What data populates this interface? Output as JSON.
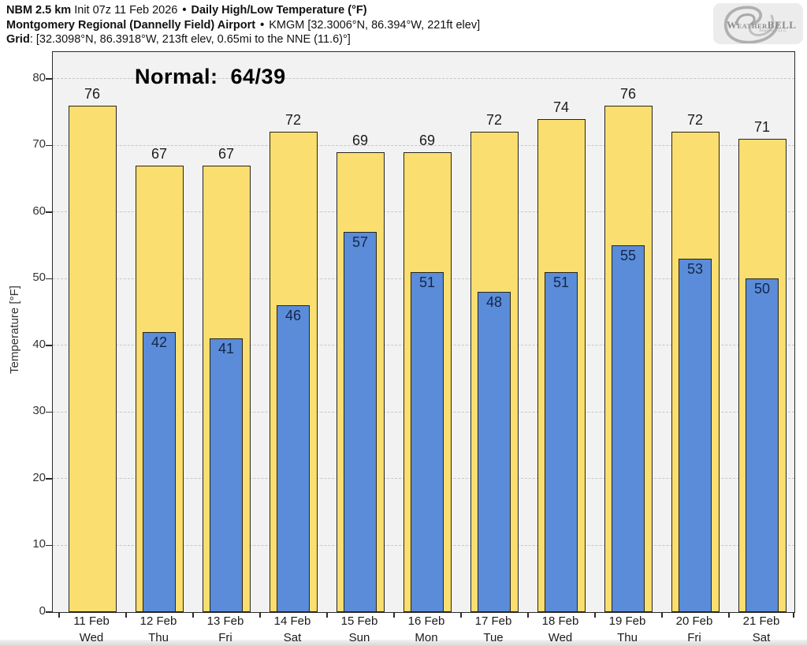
{
  "header": {
    "line1": {
      "model": "NBM 2.5 km",
      "init": " Init 07z 11 Feb 2026 ",
      "separator": "•",
      "product": " Daily High/Low Temperature (°F)"
    },
    "line2": {
      "station": "Montgomery Regional (Dannelly Field) Airport ",
      "separator": "•",
      "station_meta": " KMGM [32.3006°N, 86.394°W, 221ft elev]"
    },
    "line3": {
      "label": "Grid",
      "value": ": [32.3098°N, 86.3918°W, 213ft elev, 0.65mi to the NNE (11.6)°]"
    }
  },
  "logo": {
    "brand_w": "W",
    "brand_eather": "EATHER",
    "brand_bell": "BELL",
    "tagline": "Analytics LLC"
  },
  "annotation": "Normal:  64/39",
  "chart_data": {
    "type": "bar",
    "title": "NBM 2.5 km Daily High/Low Temperature (°F) — KMGM",
    "xlabel": "",
    "ylabel": "Temperature [°F]",
    "ylim": [
      0,
      84
    ],
    "yticks": [
      0,
      10,
      20,
      30,
      40,
      50,
      60,
      70,
      80
    ],
    "grid": "horizontal-dashed",
    "legend": "none",
    "plot_bg": "#f2f2f2",
    "categories": [
      {
        "date": "11 Feb",
        "day": "Wed"
      },
      {
        "date": "12 Feb",
        "day": "Thu"
      },
      {
        "date": "13 Feb",
        "day": "Fri"
      },
      {
        "date": "14 Feb",
        "day": "Sat"
      },
      {
        "date": "15 Feb",
        "day": "Sun"
      },
      {
        "date": "16 Feb",
        "day": "Mon"
      },
      {
        "date": "17 Feb",
        "day": "Tue"
      },
      {
        "date": "18 Feb",
        "day": "Wed"
      },
      {
        "date": "19 Feb",
        "day": "Thu"
      },
      {
        "date": "20 Feb",
        "day": "Fri"
      },
      {
        "date": "21 Feb",
        "day": "Sat"
      }
    ],
    "series": [
      {
        "name": "Daily High",
        "color": "#fade6f",
        "values": [
          76,
          67,
          67,
          72,
          69,
          69,
          72,
          74,
          76,
          72,
          71
        ]
      },
      {
        "name": "Daily Low",
        "color": "#5b8cd9",
        "values": [
          null,
          42,
          41,
          46,
          57,
          51,
          48,
          51,
          55,
          53,
          50
        ]
      }
    ],
    "normal_high": 64,
    "normal_low": 39
  },
  "colors": {
    "high_bar": "#fade6f",
    "low_bar": "#5b8cd9",
    "bar_border": "#26241c",
    "plot_background": "#f2f2f2",
    "gridline": "#c6c6c6",
    "text": "#1a1a1a"
  }
}
